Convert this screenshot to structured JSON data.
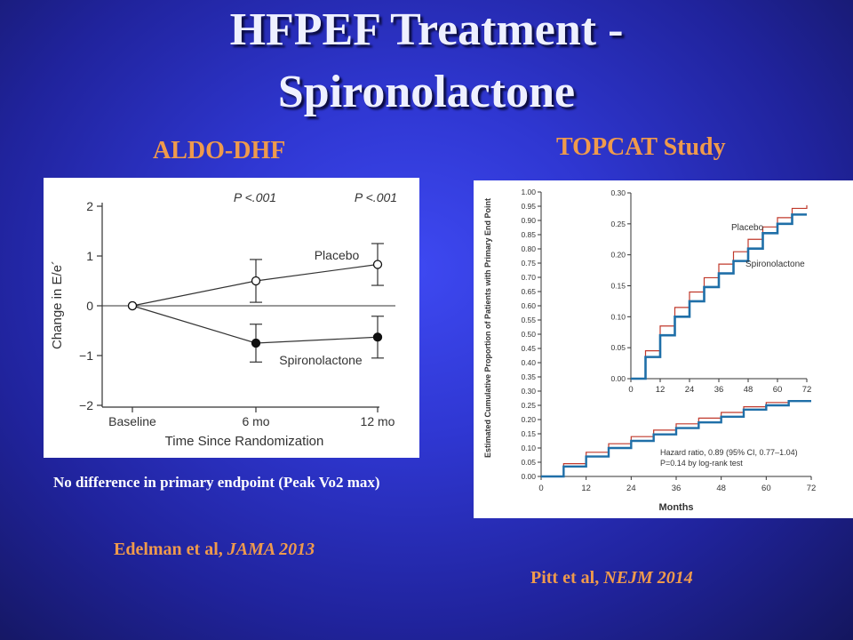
{
  "slide": {
    "title_line1": "HFPEF Treatment -",
    "title_line2": "Spironolactone",
    "left_heading": "ALDO-DHF",
    "right_heading": "TOPCAT Study",
    "left_note": "No difference in primary endpoint (Peak Vo2 max)",
    "left_citation": {
      "authors": "Edelman et al, ",
      "journal": "JAMA 2013"
    },
    "right_citation": {
      "authors": "Pitt et al, ",
      "journal": "NEJM 2014"
    }
  },
  "chart_data": [
    {
      "type": "line",
      "xlabel": "Time Since Randomization",
      "ylabel": "Change in E/e´",
      "categories": [
        "Baseline",
        "6 mo",
        "12 mo"
      ],
      "ylim": [
        -2,
        2
      ],
      "yticks": [
        "2",
        "1",
        "0",
        "−1",
        "−2"
      ],
      "annotations": [
        "P <.001",
        "P <.001"
      ],
      "series": [
        {
          "name": "Placebo",
          "marker": "open-circle",
          "values": [
            0,
            0.5,
            0.83
          ],
          "error": [
            null,
            0.43,
            0.42
          ]
        },
        {
          "name": "Spironolactone",
          "marker": "filled-circle",
          "values": [
            0,
            -0.75,
            -0.63
          ],
          "error": [
            null,
            0.38,
            0.42
          ]
        }
      ]
    },
    {
      "type": "line",
      "xlabel": "Months",
      "ylabel": "Estimated Cumulative Proportion of Patients with Primary End Point",
      "xlim": [
        0,
        72
      ],
      "ylim": [
        0,
        1.0
      ],
      "xticks": [
        "0",
        "12",
        "24",
        "36",
        "48",
        "60",
        "72"
      ],
      "yticks": [
        "0.00",
        "0.05",
        "0.10",
        "0.15",
        "0.20",
        "0.25",
        "0.30",
        "0.35",
        "0.40",
        "0.45",
        "0.50",
        "0.55",
        "0.60",
        "0.65",
        "0.70",
        "0.75",
        "0.80",
        "0.85",
        "0.90",
        "0.95",
        "1.00"
      ],
      "annotation_line1": "Hazard ratio, 0.89 (95% CI, 0.77–1.04)",
      "annotation_line2": "P=0.14 by log-rank test",
      "series": [
        {
          "name": "Placebo",
          "color": "#c0392b",
          "x": [
            0,
            6,
            12,
            18,
            24,
            30,
            36,
            42,
            48,
            54,
            60,
            66,
            72
          ],
          "values": [
            0,
            0.045,
            0.085,
            0.115,
            0.14,
            0.163,
            0.185,
            0.205,
            0.225,
            0.245,
            0.26,
            0.275,
            0.28
          ]
        },
        {
          "name": "Spironolactone",
          "color": "#1f6fa8",
          "x": [
            0,
            6,
            12,
            18,
            24,
            30,
            36,
            42,
            48,
            54,
            60,
            66,
            72
          ],
          "values": [
            0,
            0.035,
            0.07,
            0.1,
            0.125,
            0.148,
            0.17,
            0.19,
            0.21,
            0.235,
            0.25,
            0.265,
            0.265
          ]
        }
      ],
      "inset": {
        "xlim": [
          0,
          72
        ],
        "ylim": [
          0,
          0.3
        ],
        "xticks": [
          "0",
          "12",
          "24",
          "36",
          "48",
          "60",
          "72"
        ],
        "yticks": [
          "0.00",
          "0.05",
          "0.10",
          "0.15",
          "0.20",
          "0.25",
          "0.30"
        ],
        "series_labels": [
          "Placebo",
          "Spironolactone"
        ]
      }
    }
  ]
}
